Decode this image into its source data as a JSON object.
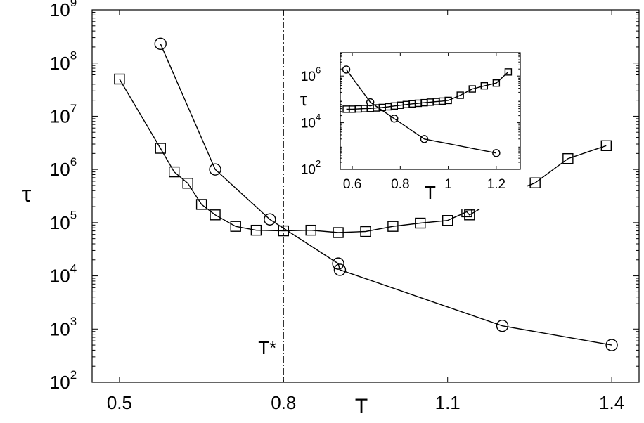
{
  "chart_data": [
    {
      "type": "line",
      "xlabel": "T",
      "ylabel": "τ",
      "yscale": "log",
      "xlim": [
        0.45,
        1.45
      ],
      "ylim": [
        100,
        1000000000
      ],
      "xticks": [
        "0.5",
        "0.8",
        "1.1",
        "1.4"
      ],
      "xtick_values": [
        0.5,
        0.8,
        1.1,
        1.4
      ],
      "yticks": [
        {
          "value": 100,
          "base": "10",
          "exp": "2"
        },
        {
          "value": 1000,
          "base": "10",
          "exp": "3"
        },
        {
          "value": 10000,
          "base": "10",
          "exp": "4"
        },
        {
          "value": 100000,
          "base": "10",
          "exp": "5"
        },
        {
          "value": 1000000,
          "base": "10",
          "exp": "6"
        },
        {
          "value": 10000000,
          "base": "10",
          "exp": "7"
        },
        {
          "value": 100000000,
          "base": "10",
          "exp": "8"
        },
        {
          "value": 1000000000,
          "base": "10",
          "exp": "9"
        }
      ],
      "reference_line": {
        "x": 0.8,
        "label": "T*",
        "style": "dash-dot"
      },
      "series": [
        {
          "marker": "square",
          "x": [
            0.5,
            0.575,
            0.6,
            0.625,
            0.65,
            0.675,
            0.7125,
            0.75,
            0.8,
            0.85,
            0.9,
            0.95,
            1.0,
            1.05,
            1.1,
            1.135,
            1.14,
            1.2,
            1.26,
            1.32,
            1.39
          ],
          "y": [
            50000000,
            2500000,
            900000,
            550000,
            220000,
            140000,
            85000,
            72000,
            70000,
            72000,
            65000,
            68000,
            85000,
            98000,
            110000,
            160000,
            140000,
            320000,
            560000,
            1600000,
            2800000
          ]
        },
        {
          "marker": "circle",
          "x": [
            0.575,
            0.675,
            0.775,
            0.9,
            0.903,
            1.2,
            1.4
          ],
          "y": [
            230000000,
            1000000,
            115000,
            17000,
            13000,
            1150,
            500
          ]
        }
      ]
    },
    {
      "type": "line",
      "inset": true,
      "xlabel": "T",
      "ylabel": "τ",
      "yscale": "log",
      "xlim": [
        0.55,
        1.3
      ],
      "ylim": [
        100,
        10000000
      ],
      "xticks": [
        "0.6",
        "0.8",
        "1",
        "1.2"
      ],
      "xtick_values": [
        0.6,
        0.8,
        1.0,
        1.2
      ],
      "yticks": [
        {
          "value": 100,
          "base": "10",
          "exp": "2"
        },
        {
          "value": 10000,
          "base": "10",
          "exp": "4"
        },
        {
          "value": 1000000,
          "base": "10",
          "exp": "6"
        }
      ],
      "series": [
        {
          "marker": "square",
          "x": [
            0.575,
            0.6,
            0.625,
            0.65,
            0.675,
            0.7,
            0.725,
            0.75,
            0.775,
            0.8,
            0.825,
            0.85,
            0.875,
            0.9,
            0.925,
            0.95,
            0.975,
            1.0,
            1.05,
            1.1,
            1.15,
            1.2,
            1.25
          ],
          "y": [
            38000,
            38000,
            39000,
            40000,
            41000,
            43000,
            45000,
            48000,
            52000,
            56000,
            60000,
            64000,
            68000,
            72000,
            76000,
            80000,
            84000,
            90000,
            150000,
            280000,
            380000,
            500000,
            1500000
          ]
        },
        {
          "marker": "circle",
          "x": [
            0.575,
            0.675,
            0.775,
            0.9,
            1.2
          ],
          "y": [
            1900000,
            75000,
            15000,
            2000,
            500
          ]
        }
      ]
    }
  ]
}
